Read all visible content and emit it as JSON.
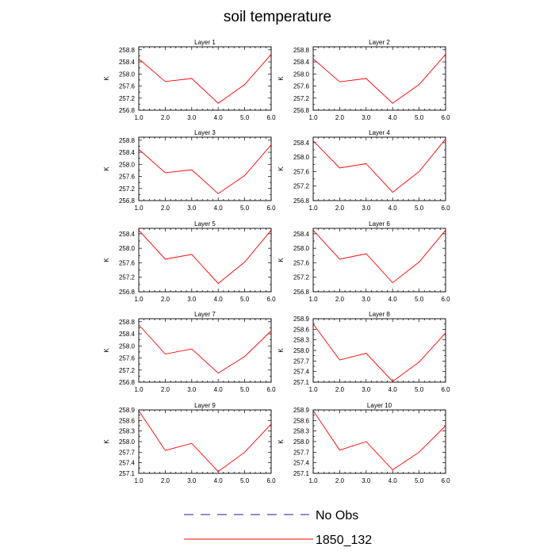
{
  "title": "soil temperature",
  "legend": [
    {
      "label": "No Obs",
      "color": "#1a1aa6",
      "dash": "dashed"
    },
    {
      "label": "1850_132",
      "color": "#ff0000",
      "dash": "solid"
    }
  ],
  "chart_data": [
    {
      "type": "line",
      "title": "Layer 1",
      "ylabel": "K",
      "xlim": [
        1,
        6
      ],
      "ylim": [
        256.8,
        258.9
      ],
      "yticks": [
        "256.8",
        "257.2",
        "257.6",
        "258.0",
        "258.4",
        "258.8"
      ],
      "xticks": [
        "1.0",
        "2.0",
        "3.0",
        "4.0",
        "5.0",
        "6.0"
      ],
      "series": [
        {
          "name": "1850_132",
          "x": [
            1,
            2,
            3,
            4,
            5,
            6
          ],
          "y": [
            258.5,
            257.75,
            257.85,
            257.03,
            257.65,
            258.65
          ]
        }
      ]
    },
    {
      "type": "line",
      "title": "Layer 2",
      "ylabel": "K",
      "xlim": [
        1,
        6
      ],
      "ylim": [
        256.8,
        258.9
      ],
      "yticks": [
        "256.8",
        "257.2",
        "257.6",
        "258.0",
        "258.4",
        "258.8"
      ],
      "xticks": [
        "1.0",
        "2.0",
        "3.0",
        "4.0",
        "5.0",
        "6.0"
      ],
      "series": [
        {
          "name": "1850_132",
          "x": [
            1,
            2,
            3,
            4,
            5,
            6
          ],
          "y": [
            258.5,
            257.74,
            257.85,
            257.03,
            257.65,
            258.65
          ]
        }
      ]
    },
    {
      "type": "line",
      "title": "Layer 3",
      "ylabel": "K",
      "xlim": [
        1,
        6
      ],
      "ylim": [
        256.8,
        258.9
      ],
      "yticks": [
        "256.8",
        "257.2",
        "257.6",
        "258.0",
        "258.4",
        "258.8"
      ],
      "xticks": [
        "1.0",
        "2.0",
        "3.0",
        "4.0",
        "5.0",
        "6.0"
      ],
      "series": [
        {
          "name": "1850_132",
          "x": [
            1,
            2,
            3,
            4,
            5,
            6
          ],
          "y": [
            258.5,
            257.72,
            257.82,
            257.03,
            257.63,
            258.65
          ]
        }
      ]
    },
    {
      "type": "line",
      "title": "Layer 4",
      "ylabel": "K",
      "xlim": [
        1,
        6
      ],
      "ylim": [
        256.8,
        258.55
      ],
      "yticks": [
        "256.8",
        "257.2",
        "257.6",
        "258.0",
        "258.4"
      ],
      "xticks": [
        "1.0",
        "2.0",
        "3.0",
        "4.0",
        "5.0",
        "6.0"
      ],
      "series": [
        {
          "name": "1850_132",
          "x": [
            1,
            2,
            3,
            4,
            5,
            6
          ],
          "y": [
            258.45,
            257.7,
            257.82,
            257.03,
            257.6,
            258.5
          ]
        }
      ]
    },
    {
      "type": "line",
      "title": "Layer 5",
      "ylabel": "K",
      "xlim": [
        1,
        6
      ],
      "ylim": [
        256.8,
        258.55
      ],
      "yticks": [
        "256.8",
        "257.2",
        "257.6",
        "258.0",
        "258.4"
      ],
      "xticks": [
        "1.0",
        "2.0",
        "3.0",
        "4.0",
        "5.0",
        "6.0"
      ],
      "series": [
        {
          "name": "1850_132",
          "x": [
            1,
            2,
            3,
            4,
            5,
            6
          ],
          "y": [
            258.5,
            257.7,
            257.83,
            257.03,
            257.62,
            258.5
          ]
        }
      ]
    },
    {
      "type": "line",
      "title": "Layer 6",
      "ylabel": "K",
      "xlim": [
        1,
        6
      ],
      "ylim": [
        256.8,
        258.55
      ],
      "yticks": [
        "256.8",
        "257.2",
        "257.6",
        "258.0",
        "258.4"
      ],
      "xticks": [
        "1.0",
        "2.0",
        "3.0",
        "4.0",
        "5.0",
        "6.0"
      ],
      "series": [
        {
          "name": "1850_132",
          "x": [
            1,
            2,
            3,
            4,
            5,
            6
          ],
          "y": [
            258.5,
            257.7,
            257.85,
            257.05,
            257.62,
            258.5
          ]
        }
      ]
    },
    {
      "type": "line",
      "title": "Layer 7",
      "ylabel": "K",
      "xlim": [
        1,
        6
      ],
      "ylim": [
        256.8,
        258.9
      ],
      "yticks": [
        "256.8",
        "257.2",
        "257.6",
        "258.0",
        "258.4",
        "258.8"
      ],
      "xticks": [
        "1.0",
        "2.0",
        "3.0",
        "4.0",
        "5.0",
        "6.0"
      ],
      "series": [
        {
          "name": "1850_132",
          "x": [
            1,
            2,
            3,
            4,
            5,
            6
          ],
          "y": [
            258.7,
            257.73,
            257.9,
            257.1,
            257.65,
            258.5
          ]
        }
      ]
    },
    {
      "type": "line",
      "title": "Layer 8",
      "ylabel": "K",
      "xlim": [
        1,
        6
      ],
      "ylim": [
        257.1,
        258.9
      ],
      "yticks": [
        "257.1",
        "257.4",
        "257.7",
        "258.0",
        "258.3",
        "258.6",
        "258.9"
      ],
      "xticks": [
        "1.0",
        "2.0",
        "3.0",
        "4.0",
        "5.0",
        "6.0"
      ],
      "series": [
        {
          "name": "1850_132",
          "x": [
            1,
            2,
            3,
            4,
            5,
            6
          ],
          "y": [
            258.75,
            257.73,
            257.92,
            257.12,
            257.67,
            258.5
          ]
        }
      ]
    },
    {
      "type": "line",
      "title": "Layer 9",
      "ylabel": "K",
      "xlim": [
        1,
        6
      ],
      "ylim": [
        257.1,
        258.9
      ],
      "yticks": [
        "257.1",
        "257.4",
        "257.7",
        "258.0",
        "258.3",
        "258.6",
        "258.9"
      ],
      "xticks": [
        "1.0",
        "2.0",
        "3.0",
        "4.0",
        "5.0",
        "6.0"
      ],
      "series": [
        {
          "name": "1850_132",
          "x": [
            1,
            2,
            3,
            4,
            5,
            6
          ],
          "y": [
            258.88,
            257.75,
            257.95,
            257.15,
            257.7,
            258.5
          ]
        }
      ]
    },
    {
      "type": "line",
      "title": "Layer 10",
      "ylabel": "K",
      "xlim": [
        1,
        6
      ],
      "ylim": [
        257.1,
        258.9
      ],
      "yticks": [
        "257.1",
        "257.4",
        "257.7",
        "258.0",
        "258.3",
        "258.6",
        "258.9"
      ],
      "xticks": [
        "1.0",
        "2.0",
        "3.0",
        "4.0",
        "5.0",
        "6.0"
      ],
      "series": [
        {
          "name": "1850_132",
          "x": [
            1,
            2,
            3,
            4,
            5,
            6
          ],
          "y": [
            258.88,
            257.76,
            258.0,
            257.2,
            257.7,
            258.45
          ]
        }
      ]
    }
  ]
}
